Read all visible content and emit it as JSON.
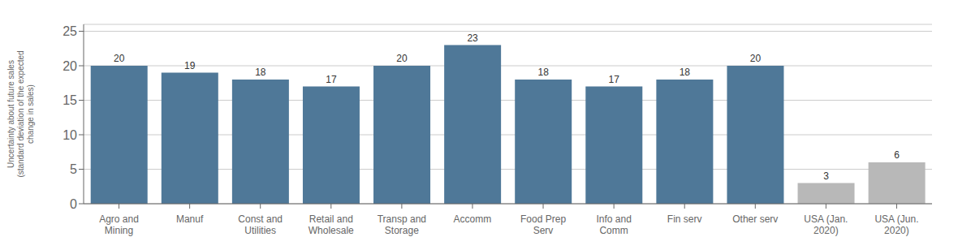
{
  "chart_data": {
    "type": "bar",
    "categories": [
      "Agro and\nMining",
      "Manuf",
      "Const and\nUtilities",
      "Retail and\nWholesale",
      "Transp and\nStorage",
      "Accomm",
      "Food Prep\nServ",
      "Info and\nComm",
      "Fin serv",
      "Other serv",
      "USA (Jan.\n2020)",
      "USA (Jun.\n2020)"
    ],
    "values": [
      20,
      19,
      18,
      17,
      20,
      23,
      18,
      17,
      18,
      20,
      3,
      6
    ],
    "colors": [
      "#4f7898",
      "#4f7898",
      "#4f7898",
      "#4f7898",
      "#4f7898",
      "#4f7898",
      "#4f7898",
      "#4f7898",
      "#4f7898",
      "#4f7898",
      "#b8b8b8",
      "#b8b8b8"
    ],
    "ylabel": "Uncertainty about future sales\n(standard deviation of the expected\nchange in sales)",
    "ylim": [
      0,
      26
    ],
    "yticks": [
      0,
      5,
      10,
      15,
      20,
      25
    ],
    "grid": true,
    "data_labels": true
  }
}
